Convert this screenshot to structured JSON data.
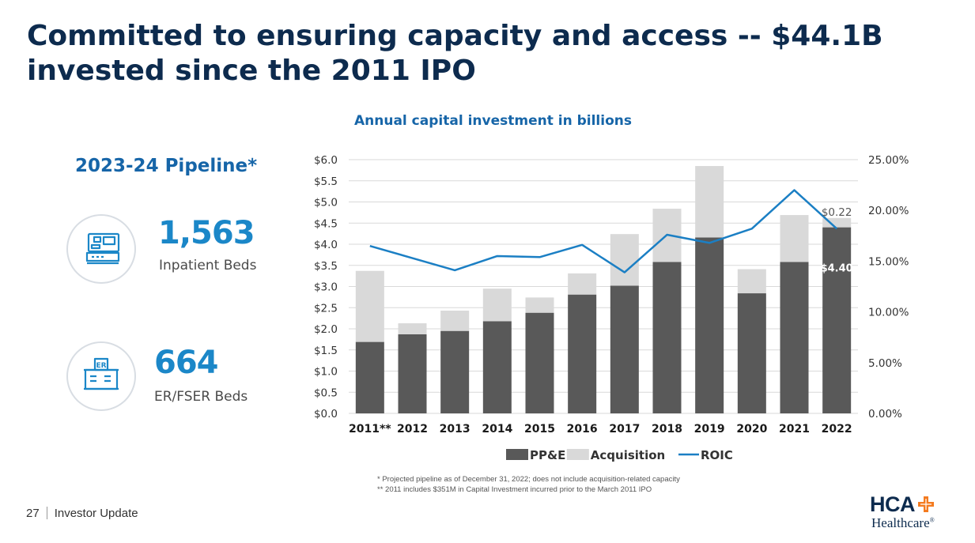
{
  "slide": {
    "title_line1": "Committed to ensuring capacity and access -- $44.1B",
    "title_line2": "invested since the 2011 IPO"
  },
  "pipeline": {
    "title": "2023-24 Pipeline*",
    "inpatient": {
      "value": "1,563",
      "label": "Inpatient Beds",
      "icon": "hospital-bed-icon"
    },
    "er": {
      "value": "664",
      "label": "ER/FSER Beds",
      "icon": "er-building-icon",
      "icon_text": "ER"
    }
  },
  "chart_data": {
    "type": "bar",
    "title": "Annual capital investment in billions",
    "categories": [
      "2011**",
      "2012",
      "2013",
      "2014",
      "2015",
      "2016",
      "2017",
      "2018",
      "2019",
      "2020",
      "2021",
      "2022"
    ],
    "series": [
      {
        "name": "PP&E",
        "kind": "bar",
        "stacked": true,
        "color": "#595959",
        "values": [
          1.69,
          1.87,
          1.95,
          2.18,
          2.38,
          2.81,
          3.02,
          3.58,
          4.16,
          2.84,
          3.58,
          4.4
        ]
      },
      {
        "name": "Acquisition",
        "kind": "bar",
        "stacked": true,
        "color": "#d9d9d9",
        "values": [
          1.68,
          0.26,
          0.48,
          0.77,
          0.36,
          0.5,
          1.22,
          1.26,
          1.69,
          0.57,
          1.11,
          0.22
        ]
      },
      {
        "name": "ROIC",
        "kind": "line",
        "axis": "right",
        "color": "#1b7fc4",
        "values": [
          16.5,
          15.3,
          14.1,
          15.5,
          15.4,
          16.6,
          13.9,
          17.6,
          16.8,
          18.2,
          22.0,
          18.2
        ]
      }
    ],
    "y_left": {
      "ylim": [
        0,
        6.0
      ],
      "ticks": [
        "$0.0",
        "$0.5",
        "$1.0",
        "$1.5",
        "$2.0",
        "$2.5",
        "$3.0",
        "$3.5",
        "$4.0",
        "$4.5",
        "$5.0",
        "$5.5",
        "$6.0"
      ]
    },
    "y_right": {
      "ylim": [
        0,
        25
      ],
      "ticks": [
        "0.00%",
        "5.00%",
        "10.00%",
        "15.00%",
        "20.00%",
        "25.00%"
      ]
    },
    "data_labels": [
      {
        "category": "2022",
        "series": "Acquisition",
        "text": "$0.22"
      },
      {
        "category": "2022",
        "series": "PP&E",
        "text": "$4.40"
      }
    ],
    "grid": true,
    "legend": {
      "position": "bottom",
      "items": [
        "PP&E",
        "Acquisition",
        "ROIC"
      ]
    }
  },
  "footnotes": {
    "line1": "* Projected pipeline as of December 31, 2022; does not include acquisition-related capacity",
    "line2": "** 2011 includes $351M in Capital Investment incurred prior to the March 2011 IPO"
  },
  "footer": {
    "page": "27",
    "text": "Investor Update"
  },
  "logo": {
    "name": "HCA",
    "sub": "Healthcare",
    "mark": "®"
  }
}
